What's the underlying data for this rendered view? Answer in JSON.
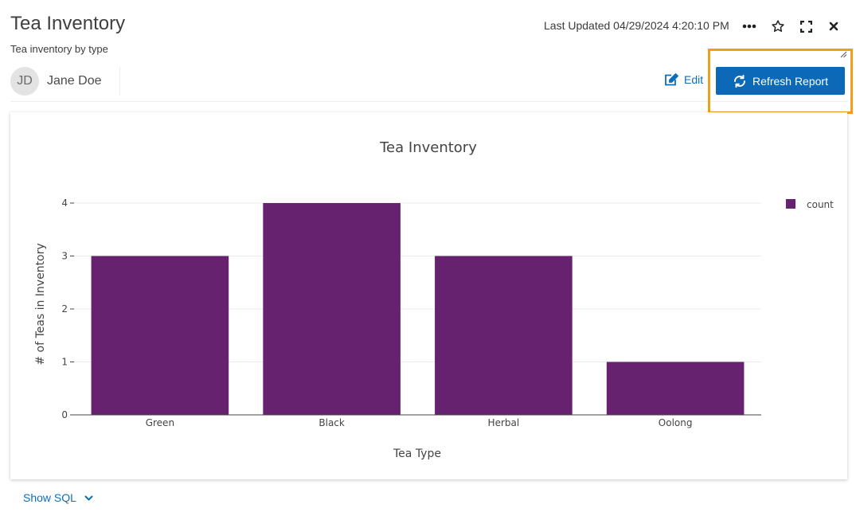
{
  "report": {
    "title": "Tea Inventory",
    "subtitle": "Tea inventory by type",
    "author_initials": "JD",
    "author_name": "Jane Doe",
    "last_updated": "Last Updated 04/29/2024 4:20:10 PM",
    "edit_label": "Edit",
    "refresh_label": "Refresh Report",
    "show_sql_label": "Show SQL"
  },
  "icons": {
    "more": "more-horizontal-icon",
    "favorite": "star-icon",
    "fullscreen": "expand-icon",
    "close": "close-icon",
    "edit": "edit-icon",
    "refresh": "refresh-icon",
    "show_sql": "chevron-down-icon"
  },
  "colors": {
    "bar": "#66226e",
    "accent": "#0b69b7",
    "link": "#0d6ebf",
    "highlight": "#f29d1c"
  },
  "chart_data": {
    "type": "bar",
    "title": "Tea Inventory",
    "xlabel": "Tea Type",
    "ylabel": "# of Teas in Inventory",
    "categories": [
      "Green",
      "Black",
      "Herbal",
      "Oolong"
    ],
    "series": [
      {
        "name": "count",
        "values": [
          3,
          4,
          3,
          1
        ]
      }
    ],
    "ylim": [
      0,
      4
    ],
    "yticks": [
      0,
      1,
      2,
      3,
      4
    ],
    "grid": true,
    "legend": "top-right"
  }
}
